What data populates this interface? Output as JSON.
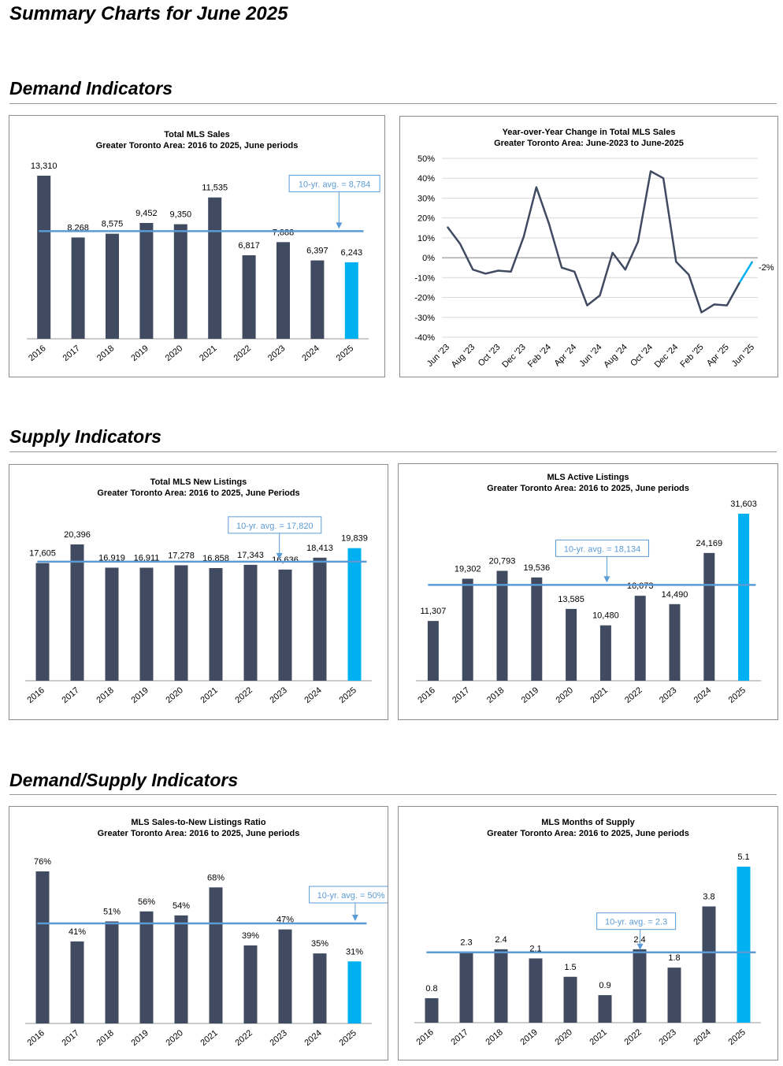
{
  "page": {
    "title": "Summary Charts for June 2025"
  },
  "sections": {
    "demand": "Demand Indicators",
    "supply": "Supply Indicators",
    "demand_supply": "Demand/Supply Indicators"
  },
  "colors": {
    "bar": "#404b62",
    "highlight": "#00b0f0",
    "avg_line": "#5b9bd5",
    "avg_text": "#5b9bd5",
    "line": "#404b62"
  },
  "chart_data": [
    {
      "id": "total-sales",
      "type": "bar",
      "title": "Total MLS Sales",
      "subtitle": "Greater Toronto Area: 2016 to 2025, June periods",
      "categories": [
        "2016",
        "2017",
        "2018",
        "2019",
        "2020",
        "2021",
        "2022",
        "2023",
        "2024",
        "2025"
      ],
      "values": [
        13310,
        8268,
        8575,
        9452,
        9350,
        11535,
        6817,
        7888,
        6397,
        6243
      ],
      "value_labels": [
        "13,310",
        "8,268",
        "8,575",
        "9,452",
        "9,350",
        "11,535",
        "6,817",
        "7,888",
        "6,397",
        "6,243"
      ],
      "ylim": [
        0,
        13310
      ],
      "average": 8784,
      "average_label": "10-yr. avg. = 8,784",
      "highlight_last": true
    },
    {
      "id": "yoy-sales",
      "type": "line",
      "title": "Year-over-Year Change in Total MLS Sales",
      "subtitle": "Greater Toronto Area: June-2023 to June-2025",
      "x": [
        "Jun '23",
        "Jul '23",
        "Aug '23",
        "Sep '23",
        "Oct '23",
        "Nov '23",
        "Dec '23",
        "Jan '24",
        "Feb '24",
        "Mar '24",
        "Apr '24",
        "May '24",
        "Jun '24",
        "Jul '24",
        "Aug '24",
        "Sep '24",
        "Oct '24",
        "Nov '24",
        "Dec '24",
        "Jan '25",
        "Feb '25",
        "Mar '25",
        "Apr '25",
        "May '25",
        "Jun '25"
      ],
      "tick_labels": [
        "Jun '23",
        "Aug '23",
        "Oct '23",
        "Dec '23",
        "Feb '24",
        "Apr '24",
        "Jun '24",
        "Aug '24",
        "Oct '24",
        "Dec '24",
        "Feb '25",
        "Apr '25",
        "Jun '25"
      ],
      "values": [
        15.5,
        7,
        -6,
        -8,
        -6.5,
        -7,
        10.5,
        35.5,
        17,
        -5,
        -7,
        -24,
        -19,
        2.5,
        -6,
        8,
        43.5,
        40,
        -2,
        -8.5,
        -27.5,
        -23.5,
        -24,
        -12.5,
        -2
      ],
      "y_ticks": [
        "50%",
        "40%",
        "30%",
        "20%",
        "10%",
        "0%",
        "-10%",
        "-20%",
        "-30%",
        "-40%"
      ],
      "ylim": [
        -40,
        50
      ],
      "end_label": "-2%"
    },
    {
      "id": "new-listings",
      "type": "bar",
      "title": "Total MLS New Listings",
      "subtitle": "Greater Toronto Area: 2016 to 2025, June Periods",
      "categories": [
        "2016",
        "2017",
        "2018",
        "2019",
        "2020",
        "2021",
        "2022",
        "2023",
        "2024",
        "2025"
      ],
      "values": [
        17605,
        20396,
        16919,
        16911,
        17278,
        16858,
        17343,
        16636,
        18413,
        19839
      ],
      "value_labels": [
        "17,605",
        "20,396",
        "16,919",
        "16,911",
        "17,278",
        "16,858",
        "17,343",
        "16,636",
        "18,413",
        "19,839"
      ],
      "ylim": [
        0,
        20396
      ],
      "average": 17820,
      "average_label": "10-yr. avg. = 17,820",
      "highlight_last": true
    },
    {
      "id": "active-listings",
      "type": "bar",
      "title": "MLS Active Listings",
      "subtitle": "Greater Toronto Area: 2016 to 2025, June periods",
      "categories": [
        "2016",
        "2017",
        "2018",
        "2019",
        "2020",
        "2021",
        "2022",
        "2023",
        "2024",
        "2025"
      ],
      "values": [
        11307,
        19302,
        20793,
        19536,
        13585,
        10480,
        16073,
        14490,
        24169,
        31603
      ],
      "value_labels": [
        "11,307",
        "19,302",
        "20,793",
        "19,536",
        "13,585",
        "10,480",
        "16,073",
        "14,490",
        "24,169",
        "31,603"
      ],
      "ylim": [
        0,
        31603
      ],
      "average": 18134,
      "average_label": "10-yr. avg. = 18,134",
      "highlight_last": true
    },
    {
      "id": "snlr",
      "type": "bar",
      "title": "MLS Sales-to-New Listings Ratio",
      "subtitle": "Greater Toronto Area: 2016 to 2025, June periods",
      "categories": [
        "2016",
        "2017",
        "2018",
        "2019",
        "2020",
        "2021",
        "2022",
        "2023",
        "2024",
        "2025"
      ],
      "values": [
        76,
        41,
        51,
        56,
        54,
        68,
        39,
        47,
        35,
        31
      ],
      "value_labels": [
        "76%",
        "41%",
        "51%",
        "56%",
        "54%",
        "68%",
        "39%",
        "47%",
        "35%",
        "31%"
      ],
      "ylim": [
        0,
        76
      ],
      "average": 50,
      "average_label": "10-yr. avg. = 50%",
      "highlight_last": true
    },
    {
      "id": "months-supply",
      "type": "bar",
      "title": "MLS Months of Supply",
      "subtitle": "Greater Toronto Area: 2016 to 2025, June periods",
      "categories": [
        "2016",
        "2017",
        "2018",
        "2019",
        "2020",
        "2021",
        "2022",
        "2023",
        "2024",
        "2025"
      ],
      "values": [
        0.8,
        2.3,
        2.4,
        2.1,
        1.5,
        0.9,
        2.4,
        1.8,
        3.8,
        5.1
      ],
      "value_labels": [
        "0.8",
        "2.3",
        "2.4",
        "2.1",
        "1.5",
        "0.9",
        "2.4",
        "1.8",
        "3.8",
        "5.1"
      ],
      "ylim": [
        0,
        5.1
      ],
      "average": 2.3,
      "average_label": "10-yr. avg. = 2.3",
      "highlight_last": true
    }
  ]
}
